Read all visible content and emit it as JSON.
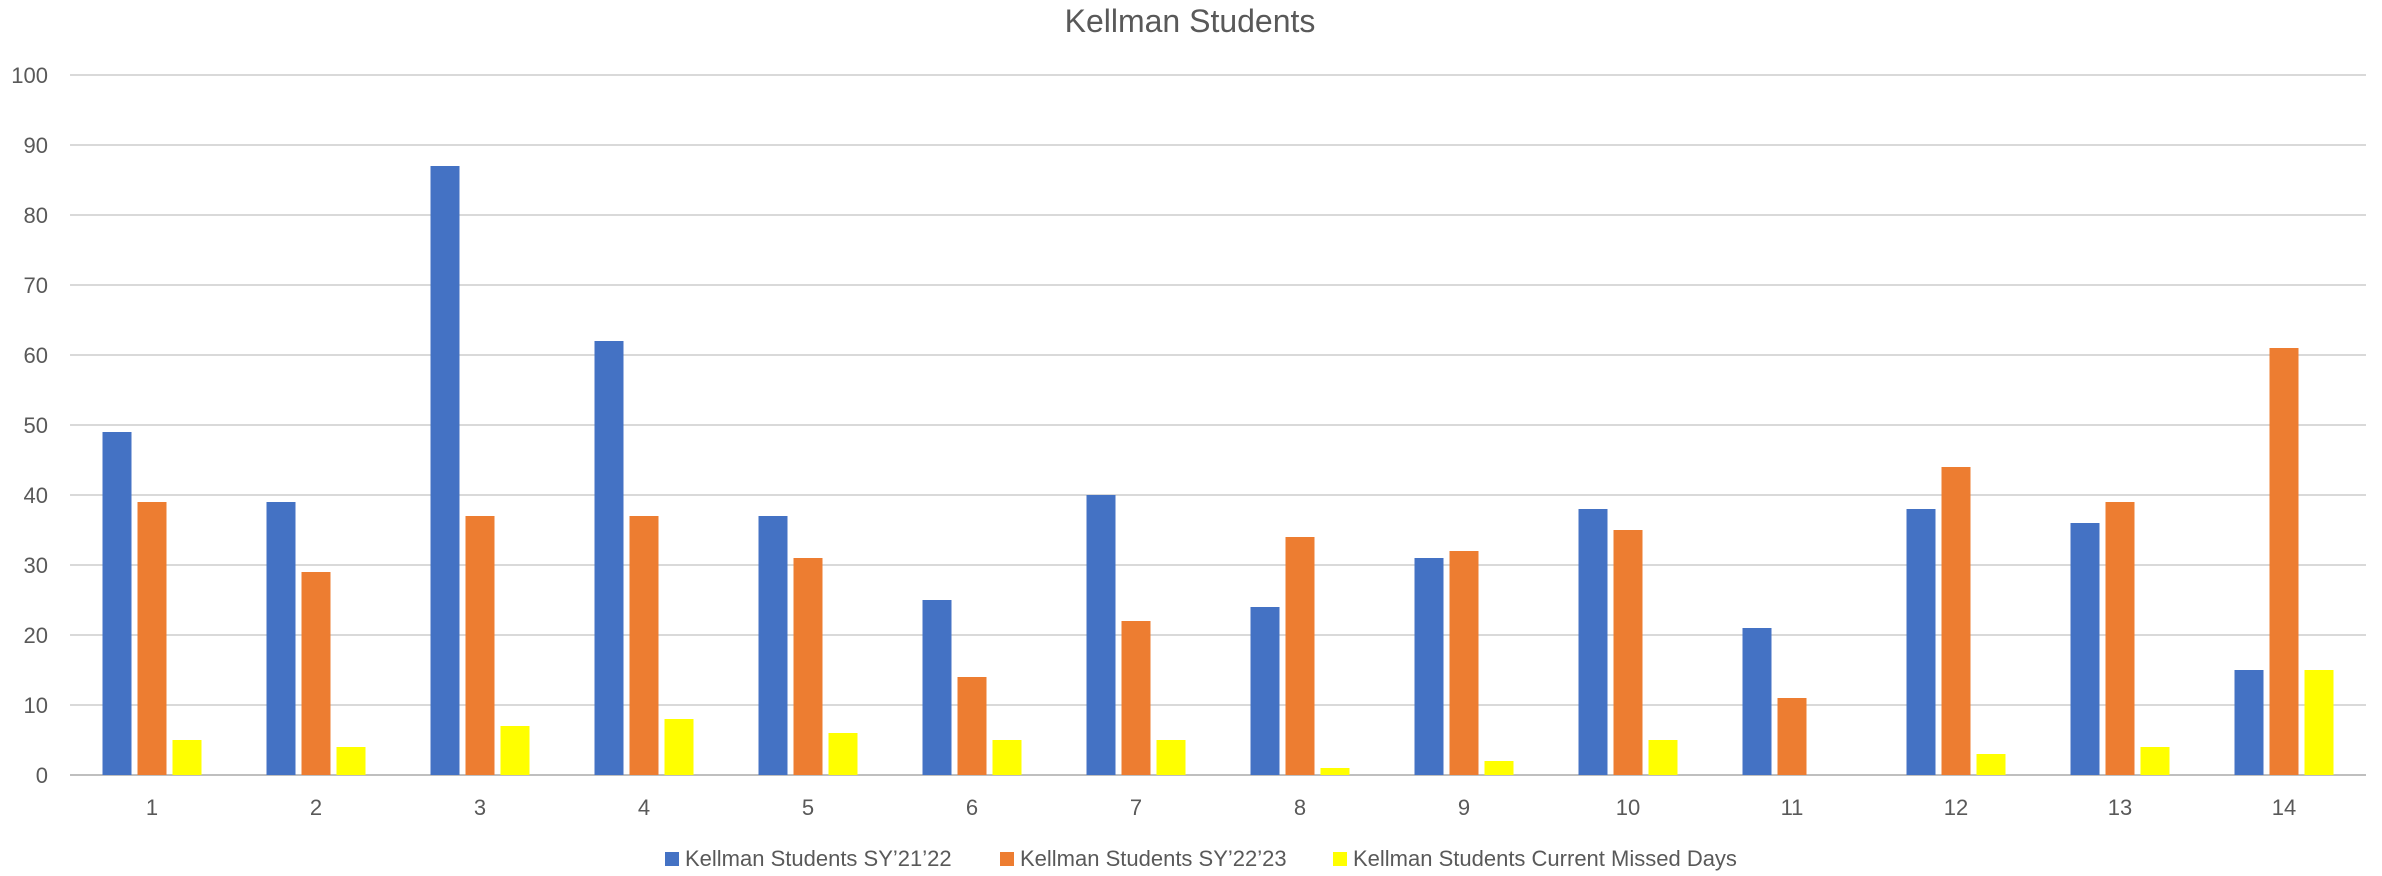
{
  "chart_data": {
    "type": "bar",
    "title": "Kellman Students",
    "xlabel": "",
    "ylabel": "",
    "ylim": [
      0,
      100
    ],
    "yticks": [
      0,
      10,
      20,
      30,
      40,
      50,
      60,
      70,
      80,
      90,
      100
    ],
    "grid": true,
    "legend_position": "bottom",
    "categories": [
      "1",
      "2",
      "3",
      "4",
      "5",
      "6",
      "7",
      "8",
      "9",
      "10",
      "11",
      "12",
      "13",
      "14"
    ],
    "series": [
      {
        "name": "Kellman Students SY’21’22",
        "color": "#4472C4",
        "values": [
          49,
          39,
          87,
          62,
          37,
          25,
          40,
          24,
          31,
          38,
          21,
          38,
          36,
          15
        ]
      },
      {
        "name": "Kellman Students SY’22’23",
        "color": "#ED7D31",
        "values": [
          39,
          29,
          37,
          37,
          31,
          14,
          22,
          34,
          32,
          35,
          11,
          44,
          39,
          61
        ]
      },
      {
        "name": "Kellman Students  Current Missed Days",
        "color": "#FFFF00",
        "values": [
          5,
          4,
          7,
          8,
          6,
          5,
          5,
          1,
          2,
          5,
          0,
          3,
          4,
          15
        ]
      }
    ]
  }
}
